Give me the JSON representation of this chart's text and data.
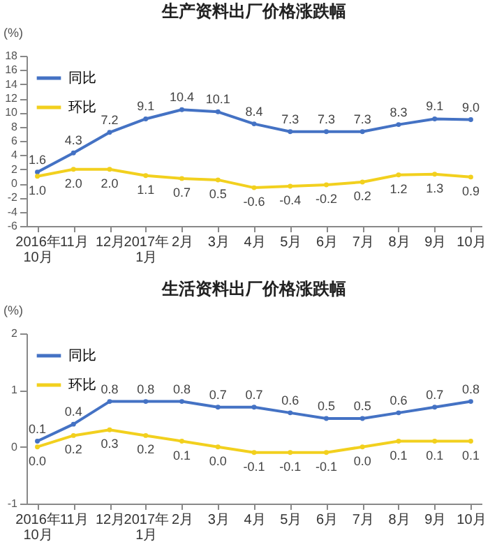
{
  "chart_data": [
    {
      "type": "line",
      "title": "生产资料出厂价格涨跌幅",
      "ylabel": "(%)",
      "categories": [
        "2016年\n10月",
        "11月",
        "12月",
        "2017年\n1月",
        "2月",
        "3月",
        "4月",
        "5月",
        "6月",
        "7月",
        "8月",
        "9月",
        "10月"
      ],
      "ylim": [
        -6,
        18
      ],
      "yticks": [
        -6,
        -4,
        -2,
        0,
        2,
        4,
        6,
        8,
        10,
        12,
        14,
        16,
        18
      ],
      "grid": false,
      "legend": "top left",
      "marker": "circle",
      "line_style": "solid",
      "series": [
        {
          "name": "同比",
          "color": "#4472c4",
          "values": [
            1.6,
            4.3,
            7.2,
            9.1,
            10.4,
            10.1,
            8.4,
            7.3,
            7.3,
            7.3,
            8.3,
            9.1,
            9.0
          ],
          "value_labels": [
            "1.6",
            "4.3",
            "7.2",
            "9.1",
            "10.4",
            "10.1",
            "8.4",
            "7.3",
            "7.3",
            "7.3",
            "8.3",
            "9.1",
            "9.0"
          ]
        },
        {
          "name": "环比",
          "color": "#f2d01e",
          "values": [
            1.0,
            2.0,
            2.0,
            1.1,
            0.7,
            0.5,
            -0.6,
            -0.4,
            -0.2,
            0.2,
            1.2,
            1.3,
            0.9
          ],
          "value_labels": [
            "1.0",
            "2.0",
            "2.0",
            "1.1",
            "0.7",
            "0.5",
            "-0.6",
            "-0.4",
            "-0.2",
            "0.2",
            "1.2",
            "1.3",
            "0.9"
          ]
        }
      ]
    },
    {
      "type": "line",
      "title": "生活资料出厂价格涨跌幅",
      "ylabel": "(%)",
      "categories": [
        "2016年\n10月",
        "11月",
        "12月",
        "2017年\n1月",
        "2月",
        "3月",
        "4月",
        "5月",
        "6月",
        "7月",
        "8月",
        "9月",
        "10月"
      ],
      "ylim": [
        -1,
        2
      ],
      "yticks": [
        -1,
        0,
        1,
        2
      ],
      "grid": false,
      "legend": "top left",
      "marker": "circle",
      "line_style": "solid",
      "series": [
        {
          "name": "同比",
          "color": "#4472c4",
          "values": [
            0.1,
            0.4,
            0.8,
            0.8,
            0.8,
            0.7,
            0.7,
            0.6,
            0.5,
            0.5,
            0.6,
            0.7,
            0.8
          ],
          "value_labels": [
            "0.1",
            "0.4",
            "0.8",
            "0.8",
            "0.8",
            "0.7",
            "0.7",
            "0.6",
            "0.5",
            "0.5",
            "0.6",
            "0.7",
            "0.8"
          ]
        },
        {
          "name": "环比",
          "color": "#f2d01e",
          "values": [
            0.0,
            0.2,
            0.3,
            0.2,
            0.1,
            0.0,
            -0.1,
            -0.1,
            -0.1,
            0.0,
            0.1,
            0.1,
            0.1
          ],
          "value_labels": [
            "0.0",
            "0.2",
            "0.3",
            "0.2",
            "0.1",
            "0.0",
            "-0.1",
            "-0.1",
            "-0.1",
            "0.0",
            "0.1",
            "0.1",
            "0.1"
          ]
        }
      ]
    }
  ]
}
